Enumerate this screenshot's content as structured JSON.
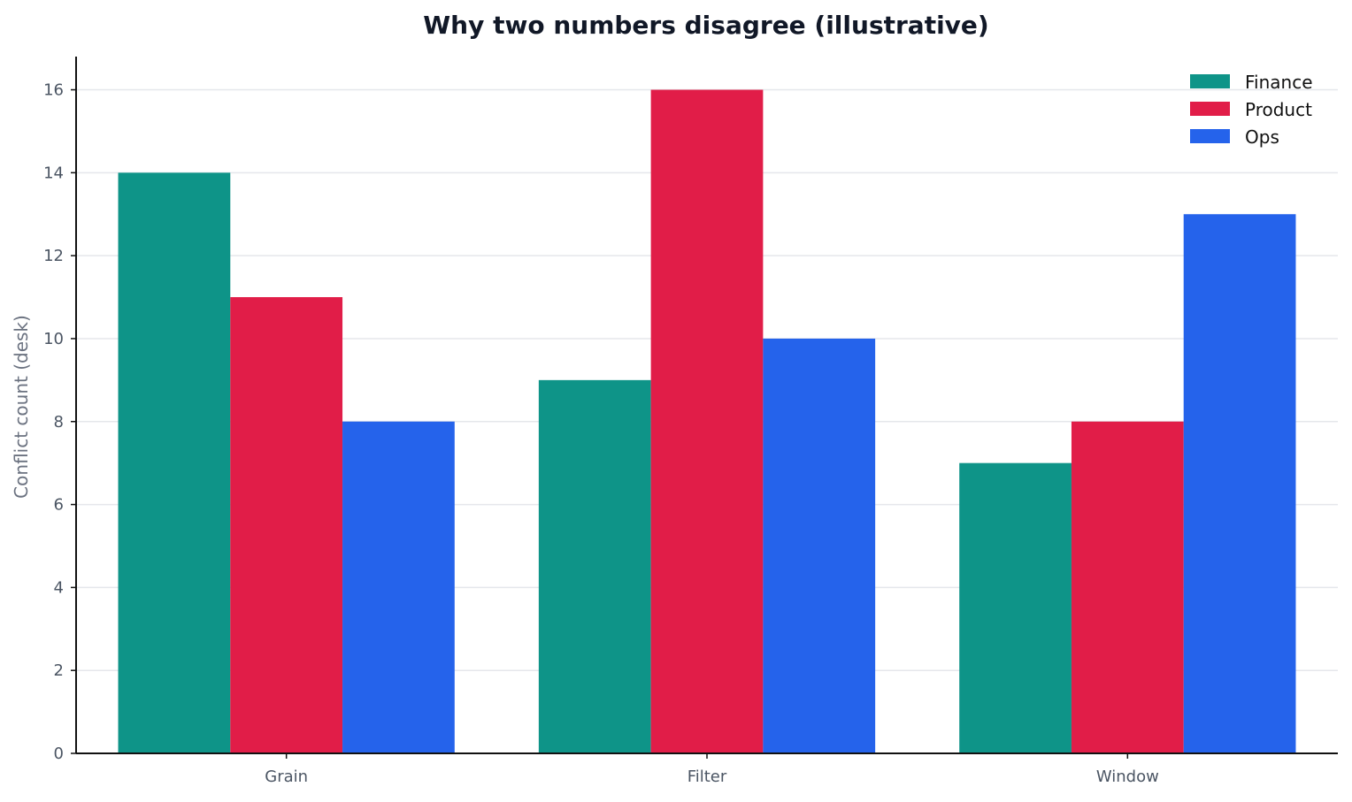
{
  "chart_data": {
    "type": "bar",
    "title": "Why two numbers disagree (illustrative)",
    "xlabel": "",
    "ylabel": "Conflict count (desk)",
    "categories": [
      "Grain",
      "Filter",
      "Window"
    ],
    "ylim": [
      0,
      16.8
    ],
    "yticks": [
      0,
      2,
      4,
      6,
      8,
      10,
      12,
      14,
      16
    ],
    "grid": true,
    "legend_position": "top-right",
    "series": [
      {
        "name": "Finance",
        "color": "#0e9488",
        "values": [
          14,
          9,
          7
        ]
      },
      {
        "name": "Product",
        "color": "#e11d48",
        "values": [
          11,
          16,
          8
        ]
      },
      {
        "name": "Ops",
        "color": "#2563eb",
        "values": [
          8,
          10,
          13
        ]
      }
    ]
  }
}
